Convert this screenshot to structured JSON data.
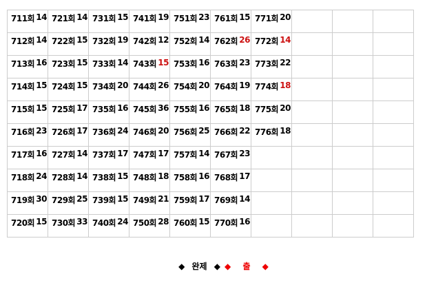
{
  "rows": [
    [
      [
        "711회",
        "14",
        false
      ],
      [
        "721회",
        "14",
        false
      ],
      [
        "731회",
        "15",
        false
      ],
      [
        "741회",
        "19",
        false
      ],
      [
        "751회",
        "23",
        false
      ],
      [
        "761회",
        "15",
        false
      ],
      [
        "771회",
        "20",
        false
      ],
      null,
      null,
      null
    ],
    [
      [
        "712회",
        "14",
        false
      ],
      [
        "722회",
        "15",
        false
      ],
      [
        "732회",
        "19",
        false
      ],
      [
        "742회",
        "12",
        false
      ],
      [
        "752회",
        "14",
        false
      ],
      [
        "762회",
        "26",
        true
      ],
      [
        "772회",
        "14",
        true
      ],
      null,
      null,
      null
    ],
    [
      [
        "713회",
        "16",
        false
      ],
      [
        "723회",
        "15",
        false
      ],
      [
        "733회",
        "14",
        false
      ],
      [
        "743회",
        "15",
        true
      ],
      [
        "753회",
        "16",
        false
      ],
      [
        "763회",
        "23",
        false
      ],
      [
        "773회",
        "22",
        false
      ],
      null,
      null,
      null
    ],
    [
      [
        "714회",
        "15",
        false
      ],
      [
        "724회",
        "15",
        false
      ],
      [
        "734회",
        "20",
        false
      ],
      [
        "744회",
        "26",
        false
      ],
      [
        "754회",
        "20",
        false
      ],
      [
        "764회",
        "19",
        false
      ],
      [
        "774회",
        "18",
        true
      ],
      null,
      null,
      null
    ],
    [
      [
        "715회",
        "15",
        false
      ],
      [
        "725회",
        "17",
        false
      ],
      [
        "735회",
        "16",
        false
      ],
      [
        "745회",
        "36",
        false
      ],
      [
        "755회",
        "16",
        false
      ],
      [
        "765회",
        "18",
        false
      ],
      [
        "775회",
        "20",
        false
      ],
      null,
      null,
      null
    ],
    [
      [
        "716회",
        "23",
        false
      ],
      [
        "726회",
        "17",
        false
      ],
      [
        "736회",
        "24",
        false
      ],
      [
        "746회",
        "20",
        false
      ],
      [
        "756회",
        "25",
        false
      ],
      [
        "766회",
        "22",
        false
      ],
      [
        "776회",
        "18",
        false
      ],
      null,
      null,
      null
    ],
    [
      [
        "717회",
        "16",
        false
      ],
      [
        "727회",
        "14",
        false
      ],
      [
        "737회",
        "17",
        false
      ],
      [
        "747회",
        "17",
        false
      ],
      [
        "757회",
        "14",
        false
      ],
      [
        "767회",
        "23",
        false
      ],
      null,
      null,
      null,
      null
    ],
    [
      [
        "718회",
        "24",
        false
      ],
      [
        "728회",
        "14",
        false
      ],
      [
        "738회",
        "15",
        false
      ],
      [
        "748회",
        "18",
        false
      ],
      [
        "758회",
        "16",
        false
      ],
      [
        "768회",
        "17",
        false
      ],
      null,
      null,
      null,
      null
    ],
    [
      [
        "719회",
        "30",
        false
      ],
      [
        "729회",
        "25",
        false
      ],
      [
        "739회",
        "15",
        false
      ],
      [
        "749회",
        "21",
        false
      ],
      [
        "759회",
        "17",
        false
      ],
      [
        "769회",
        "14",
        false
      ],
      null,
      null,
      null,
      null
    ],
    [
      [
        "720회",
        "15",
        false
      ],
      [
        "730회",
        "33",
        false
      ],
      [
        "740회",
        "24",
        false
      ],
      [
        "750회",
        "28",
        false
      ],
      [
        "760회",
        "15",
        false
      ],
      [
        "770회",
        "16",
        false
      ],
      null,
      null,
      null,
      null
    ]
  ],
  "colors": {
    "highlight": "#cc1111",
    "legend_red": "#ee0000"
  },
  "legend": {
    "complete_label": "완제",
    "out_label": "출",
    "diamond_icon": "◆"
  }
}
